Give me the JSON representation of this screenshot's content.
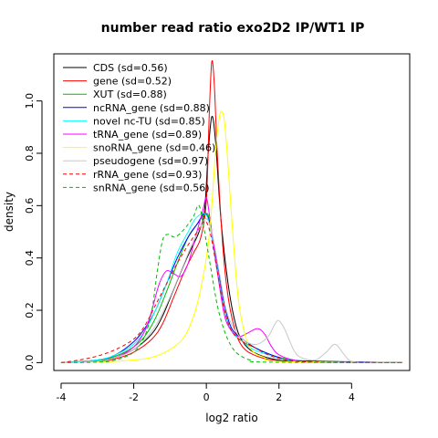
{
  "chart_data": {
    "type": "line",
    "title": "number read ratio exo2D2 IP/WT1 IP",
    "xlabel": "log2 ratio",
    "ylabel": "density",
    "xlim": [
      -4.2,
      5.6
    ],
    "ylim": [
      -0.03,
      1.18
    ],
    "xticks": [
      -4,
      -2,
      0,
      2,
      4
    ],
    "yticks": [
      0.0,
      0.2,
      0.4,
      0.6,
      0.8,
      1.0
    ],
    "grid": false,
    "legend_position": "top-left",
    "series": [
      {
        "name": "CDS (sd=0.56)",
        "color": "#000000",
        "dash": "solid",
        "points": [
          [
            -4,
            0
          ],
          [
            -3,
            0.005
          ],
          [
            -2.5,
            0.02
          ],
          [
            -2,
            0.05
          ],
          [
            -1.5,
            0.11
          ],
          [
            -1.2,
            0.18
          ],
          [
            -0.9,
            0.28
          ],
          [
            -0.6,
            0.38
          ],
          [
            -0.4,
            0.44
          ],
          [
            -0.2,
            0.5
          ],
          [
            -0.05,
            0.58
          ],
          [
            0.05,
            0.8
          ],
          [
            0.15,
            0.94
          ],
          [
            0.25,
            0.85
          ],
          [
            0.4,
            0.55
          ],
          [
            0.6,
            0.3
          ],
          [
            0.8,
            0.15
          ],
          [
            1.0,
            0.08
          ],
          [
            1.3,
            0.04
          ],
          [
            1.8,
            0.015
          ],
          [
            2.5,
            0.005
          ],
          [
            5.4,
            0
          ]
        ]
      },
      {
        "name": "gene (sd=0.52)",
        "color": "#ff0000",
        "dash": "solid",
        "points": [
          [
            -4,
            0
          ],
          [
            -3,
            0.004
          ],
          [
            -2.5,
            0.015
          ],
          [
            -2,
            0.04
          ],
          [
            -1.5,
            0.09
          ],
          [
            -1.2,
            0.15
          ],
          [
            -0.9,
            0.25
          ],
          [
            -0.6,
            0.35
          ],
          [
            -0.35,
            0.42
          ],
          [
            -0.15,
            0.48
          ],
          [
            0,
            0.62
          ],
          [
            0.08,
            0.95
          ],
          [
            0.15,
            1.15
          ],
          [
            0.22,
            1.06
          ],
          [
            0.3,
            0.8
          ],
          [
            0.45,
            0.45
          ],
          [
            0.6,
            0.25
          ],
          [
            0.8,
            0.12
          ],
          [
            1.0,
            0.06
          ],
          [
            1.3,
            0.03
          ],
          [
            1.8,
            0.01
          ],
          [
            2.5,
            0.003
          ],
          [
            5.4,
            0
          ]
        ]
      },
      {
        "name": "XUT (sd=0.88)",
        "color": "#00bb00",
        "dash": "solid",
        "points": [
          [
            -4,
            0
          ],
          [
            -3,
            0.008
          ],
          [
            -2.5,
            0.025
          ],
          [
            -2,
            0.06
          ],
          [
            -1.7,
            0.1
          ],
          [
            -1.4,
            0.17
          ],
          [
            -1.1,
            0.27
          ],
          [
            -0.8,
            0.38
          ],
          [
            -0.5,
            0.48
          ],
          [
            -0.25,
            0.53
          ],
          [
            0,
            0.57
          ],
          [
            0.1,
            0.53
          ],
          [
            0.3,
            0.35
          ],
          [
            0.5,
            0.2
          ],
          [
            0.7,
            0.12
          ],
          [
            1.0,
            0.08
          ],
          [
            1.3,
            0.06
          ],
          [
            1.6,
            0.04
          ],
          [
            2.0,
            0.02
          ],
          [
            2.5,
            0.008
          ],
          [
            3,
            0.003
          ],
          [
            5.4,
            0
          ]
        ]
      },
      {
        "name": "ncRNA_gene (sd=0.88)",
        "color": "#0000ff",
        "dash": "solid",
        "points": [
          [
            -4,
            0
          ],
          [
            -3,
            0.01
          ],
          [
            -2.5,
            0.03
          ],
          [
            -2,
            0.08
          ],
          [
            -1.7,
            0.13
          ],
          [
            -1.4,
            0.2
          ],
          [
            -1.1,
            0.3
          ],
          [
            -0.8,
            0.4
          ],
          [
            -0.5,
            0.48
          ],
          [
            -0.25,
            0.53
          ],
          [
            -0.05,
            0.57
          ],
          [
            0.1,
            0.53
          ],
          [
            0.3,
            0.38
          ],
          [
            0.5,
            0.22
          ],
          [
            0.7,
            0.13
          ],
          [
            1.0,
            0.09
          ],
          [
            1.3,
            0.06
          ],
          [
            1.6,
            0.04
          ],
          [
            2.0,
            0.02
          ],
          [
            2.5,
            0.008
          ],
          [
            5.4,
            0
          ]
        ]
      },
      {
        "name": "novel nc-TU (sd=0.85)",
        "color": "#00ffff",
        "dash": "solid",
        "points": [
          [
            -4,
            0
          ],
          [
            -3,
            0.01
          ],
          [
            -2.5,
            0.03
          ],
          [
            -2,
            0.07
          ],
          [
            -1.7,
            0.12
          ],
          [
            -1.4,
            0.2
          ],
          [
            -1.1,
            0.3
          ],
          [
            -0.8,
            0.42
          ],
          [
            -0.5,
            0.5
          ],
          [
            -0.3,
            0.55
          ],
          [
            -0.05,
            0.57
          ],
          [
            0.1,
            0.52
          ],
          [
            0.3,
            0.36
          ],
          [
            0.5,
            0.2
          ],
          [
            0.7,
            0.12
          ],
          [
            1.0,
            0.08
          ],
          [
            1.3,
            0.05
          ],
          [
            1.7,
            0.03
          ],
          [
            2.2,
            0.01
          ],
          [
            3,
            0.003
          ],
          [
            5.4,
            0
          ]
        ]
      },
      {
        "name": "tRNA_gene (sd=0.89)",
        "color": "#ff00ff",
        "dash": "solid",
        "points": [
          [
            -4,
            0
          ],
          [
            -3,
            0.005
          ],
          [
            -2.5,
            0.02
          ],
          [
            -2,
            0.06
          ],
          [
            -1.7,
            0.12
          ],
          [
            -1.5,
            0.2
          ],
          [
            -1.3,
            0.3
          ],
          [
            -1.1,
            0.35
          ],
          [
            -0.9,
            0.34
          ],
          [
            -0.7,
            0.33
          ],
          [
            -0.5,
            0.38
          ],
          [
            -0.3,
            0.48
          ],
          [
            -0.1,
            0.58
          ],
          [
            0,
            0.63
          ],
          [
            0.1,
            0.55
          ],
          [
            0.3,
            0.35
          ],
          [
            0.5,
            0.18
          ],
          [
            0.7,
            0.12
          ],
          [
            0.9,
            0.1
          ],
          [
            1.1,
            0.11
          ],
          [
            1.4,
            0.13
          ],
          [
            1.6,
            0.11
          ],
          [
            1.8,
            0.06
          ],
          [
            2.0,
            0.03
          ],
          [
            2.4,
            0.01
          ],
          [
            3,
            0.002
          ],
          [
            5.4,
            0
          ]
        ]
      },
      {
        "name": "snoRNA_gene (sd=0.46)",
        "color": "#ffff00",
        "dash": "solid",
        "points": [
          [
            -4,
            0
          ],
          [
            -3,
            0.002
          ],
          [
            -2,
            0.01
          ],
          [
            -1.5,
            0.02
          ],
          [
            -1,
            0.05
          ],
          [
            -0.6,
            0.1
          ],
          [
            -0.3,
            0.2
          ],
          [
            -0.1,
            0.32
          ],
          [
            0.05,
            0.45
          ],
          [
            0.15,
            0.6
          ],
          [
            0.25,
            0.8
          ],
          [
            0.35,
            0.93
          ],
          [
            0.42,
            0.96
          ],
          [
            0.5,
            0.92
          ],
          [
            0.6,
            0.75
          ],
          [
            0.75,
            0.45
          ],
          [
            0.9,
            0.22
          ],
          [
            1.1,
            0.09
          ],
          [
            1.3,
            0.04
          ],
          [
            1.6,
            0.02
          ],
          [
            2,
            0.005
          ],
          [
            5.4,
            0
          ]
        ]
      },
      {
        "name": "pseudogene (sd=0.97)",
        "color": "#c8c8c8",
        "dash": "solid",
        "points": [
          [
            -4,
            0
          ],
          [
            -3,
            0.005
          ],
          [
            -2.5,
            0.02
          ],
          [
            -2,
            0.05
          ],
          [
            -1.5,
            0.12
          ],
          [
            -1.1,
            0.22
          ],
          [
            -0.7,
            0.35
          ],
          [
            -0.4,
            0.45
          ],
          [
            -0.15,
            0.52
          ],
          [
            0,
            0.55
          ],
          [
            0.15,
            0.5
          ],
          [
            0.35,
            0.35
          ],
          [
            0.55,
            0.2
          ],
          [
            0.8,
            0.12
          ],
          [
            1.1,
            0.08
          ],
          [
            1.4,
            0.07
          ],
          [
            1.7,
            0.1
          ],
          [
            1.9,
            0.15
          ],
          [
            2.0,
            0.16
          ],
          [
            2.15,
            0.13
          ],
          [
            2.4,
            0.05
          ],
          [
            2.6,
            0.02
          ],
          [
            3.0,
            0.01
          ],
          [
            3.3,
            0.04
          ],
          [
            3.55,
            0.07
          ],
          [
            3.8,
            0.03
          ],
          [
            4.0,
            0.005
          ],
          [
            4.5,
            0.001
          ],
          [
            5.4,
            0
          ]
        ]
      },
      {
        "name": "rRNA_gene (sd=0.93)",
        "color": "#ff0000",
        "dash": "dashed",
        "points": [
          [
            -4,
            0
          ],
          [
            -3.5,
            0.01
          ],
          [
            -3,
            0.025
          ],
          [
            -2.5,
            0.05
          ],
          [
            -2,
            0.09
          ],
          [
            -1.7,
            0.14
          ],
          [
            -1.4,
            0.22
          ],
          [
            -1.1,
            0.3
          ],
          [
            -0.8,
            0.38
          ],
          [
            -0.5,
            0.45
          ],
          [
            -0.25,
            0.5
          ],
          [
            -0.05,
            0.54
          ],
          [
            0.1,
            0.5
          ],
          [
            0.3,
            0.35
          ],
          [
            0.5,
            0.2
          ],
          [
            0.7,
            0.12
          ],
          [
            1.0,
            0.08
          ],
          [
            1.3,
            0.06
          ],
          [
            1.7,
            0.03
          ],
          [
            2.2,
            0.01
          ],
          [
            3,
            0.002
          ],
          [
            5.4,
            0
          ]
        ]
      },
      {
        "name": "snRNA_gene (sd=0.56)",
        "color": "#00bb00",
        "dash": "dashed",
        "points": [
          [
            -4,
            0
          ],
          [
            -3,
            0.002
          ],
          [
            -2.5,
            0.01
          ],
          [
            -2,
            0.04
          ],
          [
            -1.7,
            0.1
          ],
          [
            -1.5,
            0.2
          ],
          [
            -1.35,
            0.35
          ],
          [
            -1.2,
            0.47
          ],
          [
            -1.05,
            0.49
          ],
          [
            -0.9,
            0.48
          ],
          [
            -0.75,
            0.49
          ],
          [
            -0.55,
            0.52
          ],
          [
            -0.35,
            0.56
          ],
          [
            -0.2,
            0.6
          ],
          [
            -0.05,
            0.5
          ],
          [
            0.1,
            0.38
          ],
          [
            0.3,
            0.22
          ],
          [
            0.5,
            0.12
          ],
          [
            0.7,
            0.06
          ],
          [
            0.9,
            0.03
          ],
          [
            1.2,
            0.01
          ],
          [
            1.6,
            0.002
          ],
          [
            5.4,
            0
          ]
        ]
      }
    ]
  }
}
